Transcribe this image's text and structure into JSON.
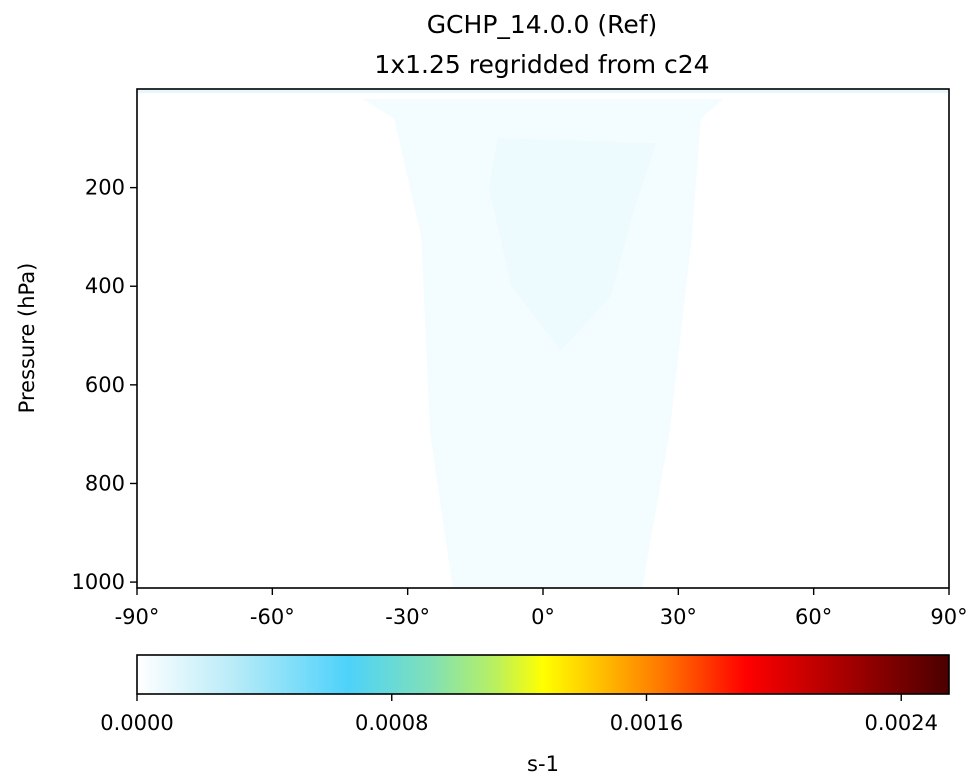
{
  "chart_data": {
    "type": "heatmap",
    "title": "GCHP_14.0.0 (Ref)",
    "subtitle": "1x1.25 regridded from c24",
    "ylabel": "Pressure (hPa)",
    "xlabel": "",
    "x_ticks": [
      -90,
      -60,
      -30,
      0,
      30,
      60,
      90
    ],
    "x_tick_labels": [
      "-90°",
      "-60°",
      "-30°",
      "0°",
      "30°",
      "60°",
      "90°"
    ],
    "xlim": [
      -90,
      90
    ],
    "y_ticks": [
      200,
      400,
      600,
      800,
      1000
    ],
    "y_tick_labels": [
      "200",
      "400",
      "600",
      "800",
      "1000"
    ],
    "ylim": [
      1012,
      0
    ],
    "y_inverted": true,
    "field_description_values": [
      {
        "region": "background",
        "value": 0.0
      },
      {
        "region": "tropical column, 20°S-35°N, surface to ~100 hPa",
        "value": 2e-05
      },
      {
        "region": "inner tropical core, 10°S-25°N, 100-530 hPa",
        "value": 4e-05
      },
      {
        "region": "top layer near model top",
        "value": 5e-05
      }
    ],
    "colorbar": {
      "label": "s-1",
      "range": [
        0.0,
        0.00255
      ],
      "ticks": [
        0.0,
        0.0008,
        0.0016,
        0.0024
      ],
      "tick_labels": [
        "0.0000",
        "0.0008",
        "0.0016",
        "0.0024"
      ],
      "colormap": "WhGrYlRd",
      "orientation": "horizontal",
      "position": "bottom"
    },
    "grid": false
  }
}
